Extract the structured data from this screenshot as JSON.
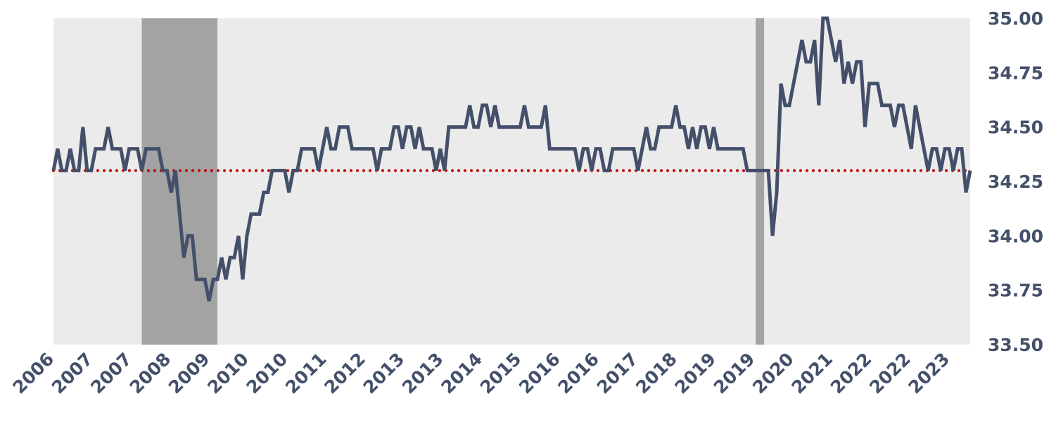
{
  "chart_data": {
    "type": "line",
    "title": "",
    "xlabel": "",
    "ylabel": "",
    "x_tick_labels": [
      "2006",
      "2007",
      "2007",
      "2008",
      "2009",
      "2010",
      "2010",
      "2011",
      "2012",
      "2013",
      "2013",
      "2014",
      "2015",
      "2016",
      "2016",
      "2017",
      "2018",
      "2019",
      "2019",
      "2020",
      "2021",
      "2022",
      "2022",
      "2023"
    ],
    "y_ticks": [
      "35.00",
      "34.75",
      "34.50",
      "34.25",
      "34.00",
      "33.75",
      "33.50"
    ],
    "ylim": [
      33.5,
      35.0
    ],
    "y_axis_position": "right",
    "grid": false,
    "colors": {
      "plot_background": "#ebebeb",
      "recession_band": "#a3a3a3",
      "series_line": "#44506a",
      "reference_line": "#c00000",
      "tick_text": "#44506a"
    },
    "reference_line": {
      "value": 34.3,
      "style": "dotted"
    },
    "recession_bands": [
      {
        "start": "2007-12",
        "end": "2009-06"
      },
      {
        "start": "2020-02",
        "end": "2020-04"
      }
    ],
    "series": [
      {
        "start": "2006-03",
        "frequency": "monthly",
        "values": [
          34.3,
          34.4,
          34.3,
          34.3,
          34.4,
          34.3,
          34.3,
          34.5,
          34.3,
          34.3,
          34.4,
          34.4,
          34.4,
          34.5,
          34.4,
          34.4,
          34.4,
          34.3,
          34.4,
          34.4,
          34.4,
          34.3,
          34.4,
          34.4,
          34.4,
          34.4,
          34.3,
          34.3,
          34.2,
          34.3,
          34.1,
          33.9,
          34.0,
          34.0,
          33.8,
          33.8,
          33.8,
          33.7,
          33.8,
          33.8,
          33.9,
          33.8,
          33.9,
          33.9,
          34.0,
          33.8,
          34.0,
          34.1,
          34.1,
          34.1,
          34.2,
          34.2,
          34.3,
          34.3,
          34.3,
          34.3,
          34.2,
          34.3,
          34.3,
          34.4,
          34.4,
          34.4,
          34.4,
          34.3,
          34.4,
          34.5,
          34.4,
          34.4,
          34.5,
          34.5,
          34.5,
          34.4,
          34.4,
          34.4,
          34.4,
          34.4,
          34.4,
          34.3,
          34.4,
          34.4,
          34.4,
          34.5,
          34.5,
          34.4,
          34.5,
          34.5,
          34.4,
          34.5,
          34.4,
          34.4,
          34.4,
          34.3,
          34.4,
          34.3,
          34.5,
          34.5,
          34.5,
          34.5,
          34.5,
          34.6,
          34.5,
          34.5,
          34.6,
          34.6,
          34.5,
          34.6,
          34.5,
          34.5,
          34.5,
          34.5,
          34.5,
          34.5,
          34.6,
          34.5,
          34.5,
          34.5,
          34.5,
          34.6,
          34.4,
          34.4,
          34.4,
          34.4,
          34.4,
          34.4,
          34.4,
          34.3,
          34.4,
          34.4,
          34.3,
          34.4,
          34.4,
          34.3,
          34.3,
          34.4,
          34.4,
          34.4,
          34.4,
          34.4,
          34.4,
          34.3,
          34.4,
          34.5,
          34.4,
          34.4,
          34.5,
          34.5,
          34.5,
          34.5,
          34.6,
          34.5,
          34.5,
          34.4,
          34.5,
          34.4,
          34.5,
          34.5,
          34.4,
          34.5,
          34.4,
          34.4,
          34.4,
          34.4,
          34.4,
          34.4,
          34.4,
          34.3,
          34.3,
          34.3,
          34.3,
          34.3,
          34.3,
          34.0,
          34.2,
          34.7,
          34.6,
          34.6,
          34.7,
          34.8,
          34.9,
          34.8,
          34.8,
          34.9,
          34.6,
          35.0,
          35.0,
          34.9,
          34.8,
          34.9,
          34.7,
          34.8,
          34.7,
          34.8,
          34.8,
          34.5,
          34.7,
          34.7,
          34.7,
          34.6,
          34.6,
          34.6,
          34.5,
          34.6,
          34.6,
          34.5,
          34.4,
          34.6,
          34.5,
          34.4,
          34.3,
          34.4,
          34.4,
          34.3,
          34.4,
          34.4,
          34.3,
          34.4,
          34.4,
          34.2,
          34.3
        ]
      }
    ]
  }
}
